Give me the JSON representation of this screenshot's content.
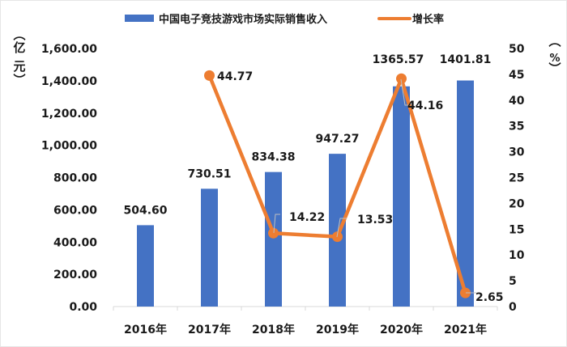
{
  "chart_data": {
    "type": "bar+line",
    "title": "",
    "categories": [
      "2016年",
      "2017年",
      "2018年",
      "2019年",
      "2020年",
      "2021年"
    ],
    "series": [
      {
        "name": "中国电子竞技游戏市场实际销售收入",
        "type": "bar",
        "axis": "left",
        "color": "#4472C4",
        "values": [
          504.6,
          730.51,
          834.38,
          947.27,
          1365.57,
          1401.81
        ],
        "labels": [
          "504.60",
          "730.51",
          "834.38",
          "947.27",
          "1365.57",
          "1401.81"
        ]
      },
      {
        "name": "增长率",
        "type": "line",
        "axis": "right",
        "color": "#ED7D31",
        "values": [
          null,
          44.77,
          14.22,
          13.53,
          44.16,
          2.65
        ],
        "labels": [
          "",
          "44.77",
          "14.22",
          "13.53",
          "44.16",
          "2.65"
        ]
      }
    ],
    "y_left": {
      "label": "（亿元）",
      "label_chars": [
        "︵",
        "亿",
        "元",
        "︶"
      ],
      "ylim": [
        0,
        1600
      ],
      "ticks": [
        "0.00",
        "200.00",
        "400.00",
        "600.00",
        "800.00",
        "1,000.00",
        "1,200.00",
        "1,400.00",
        "1,600.00"
      ]
    },
    "y_right": {
      "label": "（%）",
      "label_chars": [
        "︵",
        "%",
        "︶"
      ],
      "ylim": [
        0,
        50
      ],
      "ticks": [
        "0",
        "5",
        "10",
        "15",
        "20",
        "25",
        "30",
        "35",
        "40",
        "45",
        "50"
      ]
    },
    "xlabel": "",
    "grid": false,
    "legend_position": "top"
  }
}
